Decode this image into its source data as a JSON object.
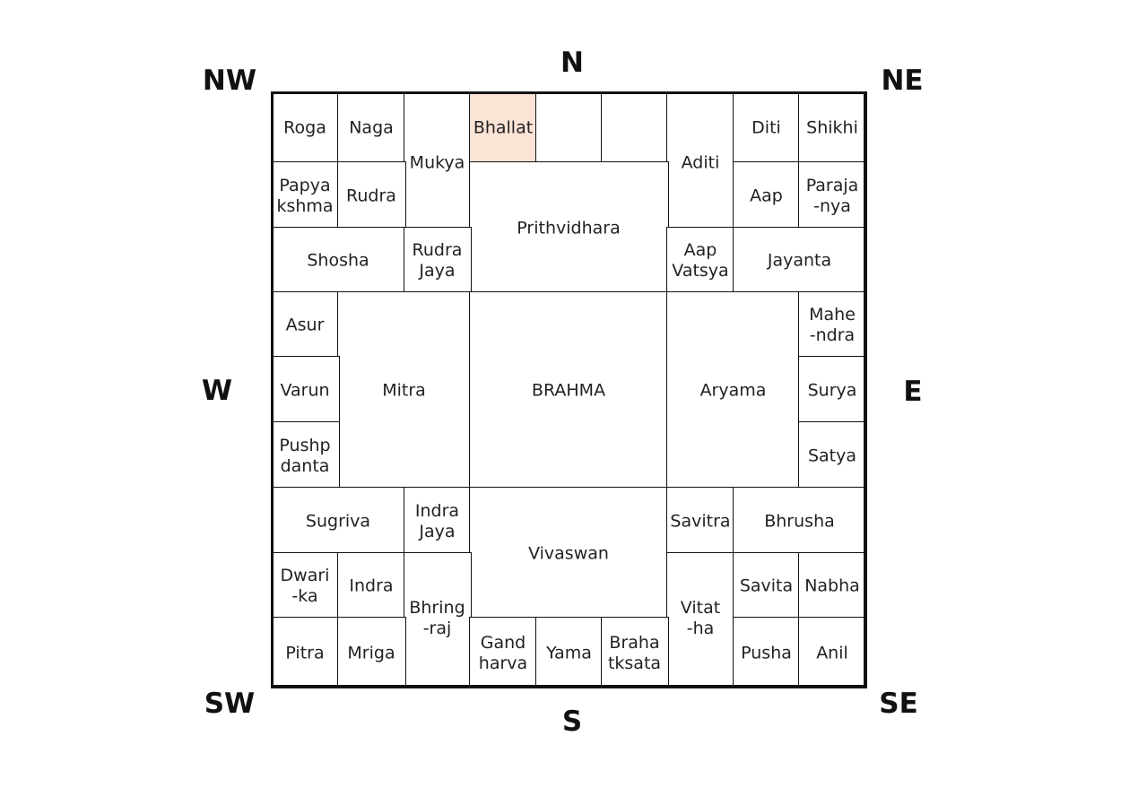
{
  "directions": {
    "nw": "NW",
    "n": "N",
    "ne": "NE",
    "w": "W",
    "e": "E",
    "sw": "SW",
    "s": "S",
    "se": "SE"
  },
  "highlight_color": "#fbe3d6",
  "cells": [
    "Roga",
    "Naga",
    "Mukya",
    "Bhallat",
    "",
    "",
    "Aditi",
    "Diti",
    "Shikhi",
    "Papya\nkshma",
    "Rudra",
    "Prithvidhara",
    "Aap",
    "Paraja\n-nya",
    "Shosha",
    "Rudra\nJaya",
    "Aap\nVatsya",
    "Jayanta",
    "Asur",
    "Mitra",
    "BRAHMA",
    "Aryama",
    "Mahe\n-ndra",
    "Varun",
    "Surya",
    "Pushp\ndanta",
    "Satya",
    "Sugriva",
    "Indra\nJaya",
    "Vivaswan",
    "Savitra",
    "Bhrusha",
    "Dwari\n-ka",
    "Indra",
    "Bhring\n-raj",
    "Vitat\n-ha",
    "Savita",
    "Nabha",
    "Pitra",
    "Mriga",
    "Gand\nharva",
    "Yama",
    "Braha\ntksata",
    "Pusha",
    "Anil"
  ],
  "highlighted_cell": "Bhallat"
}
